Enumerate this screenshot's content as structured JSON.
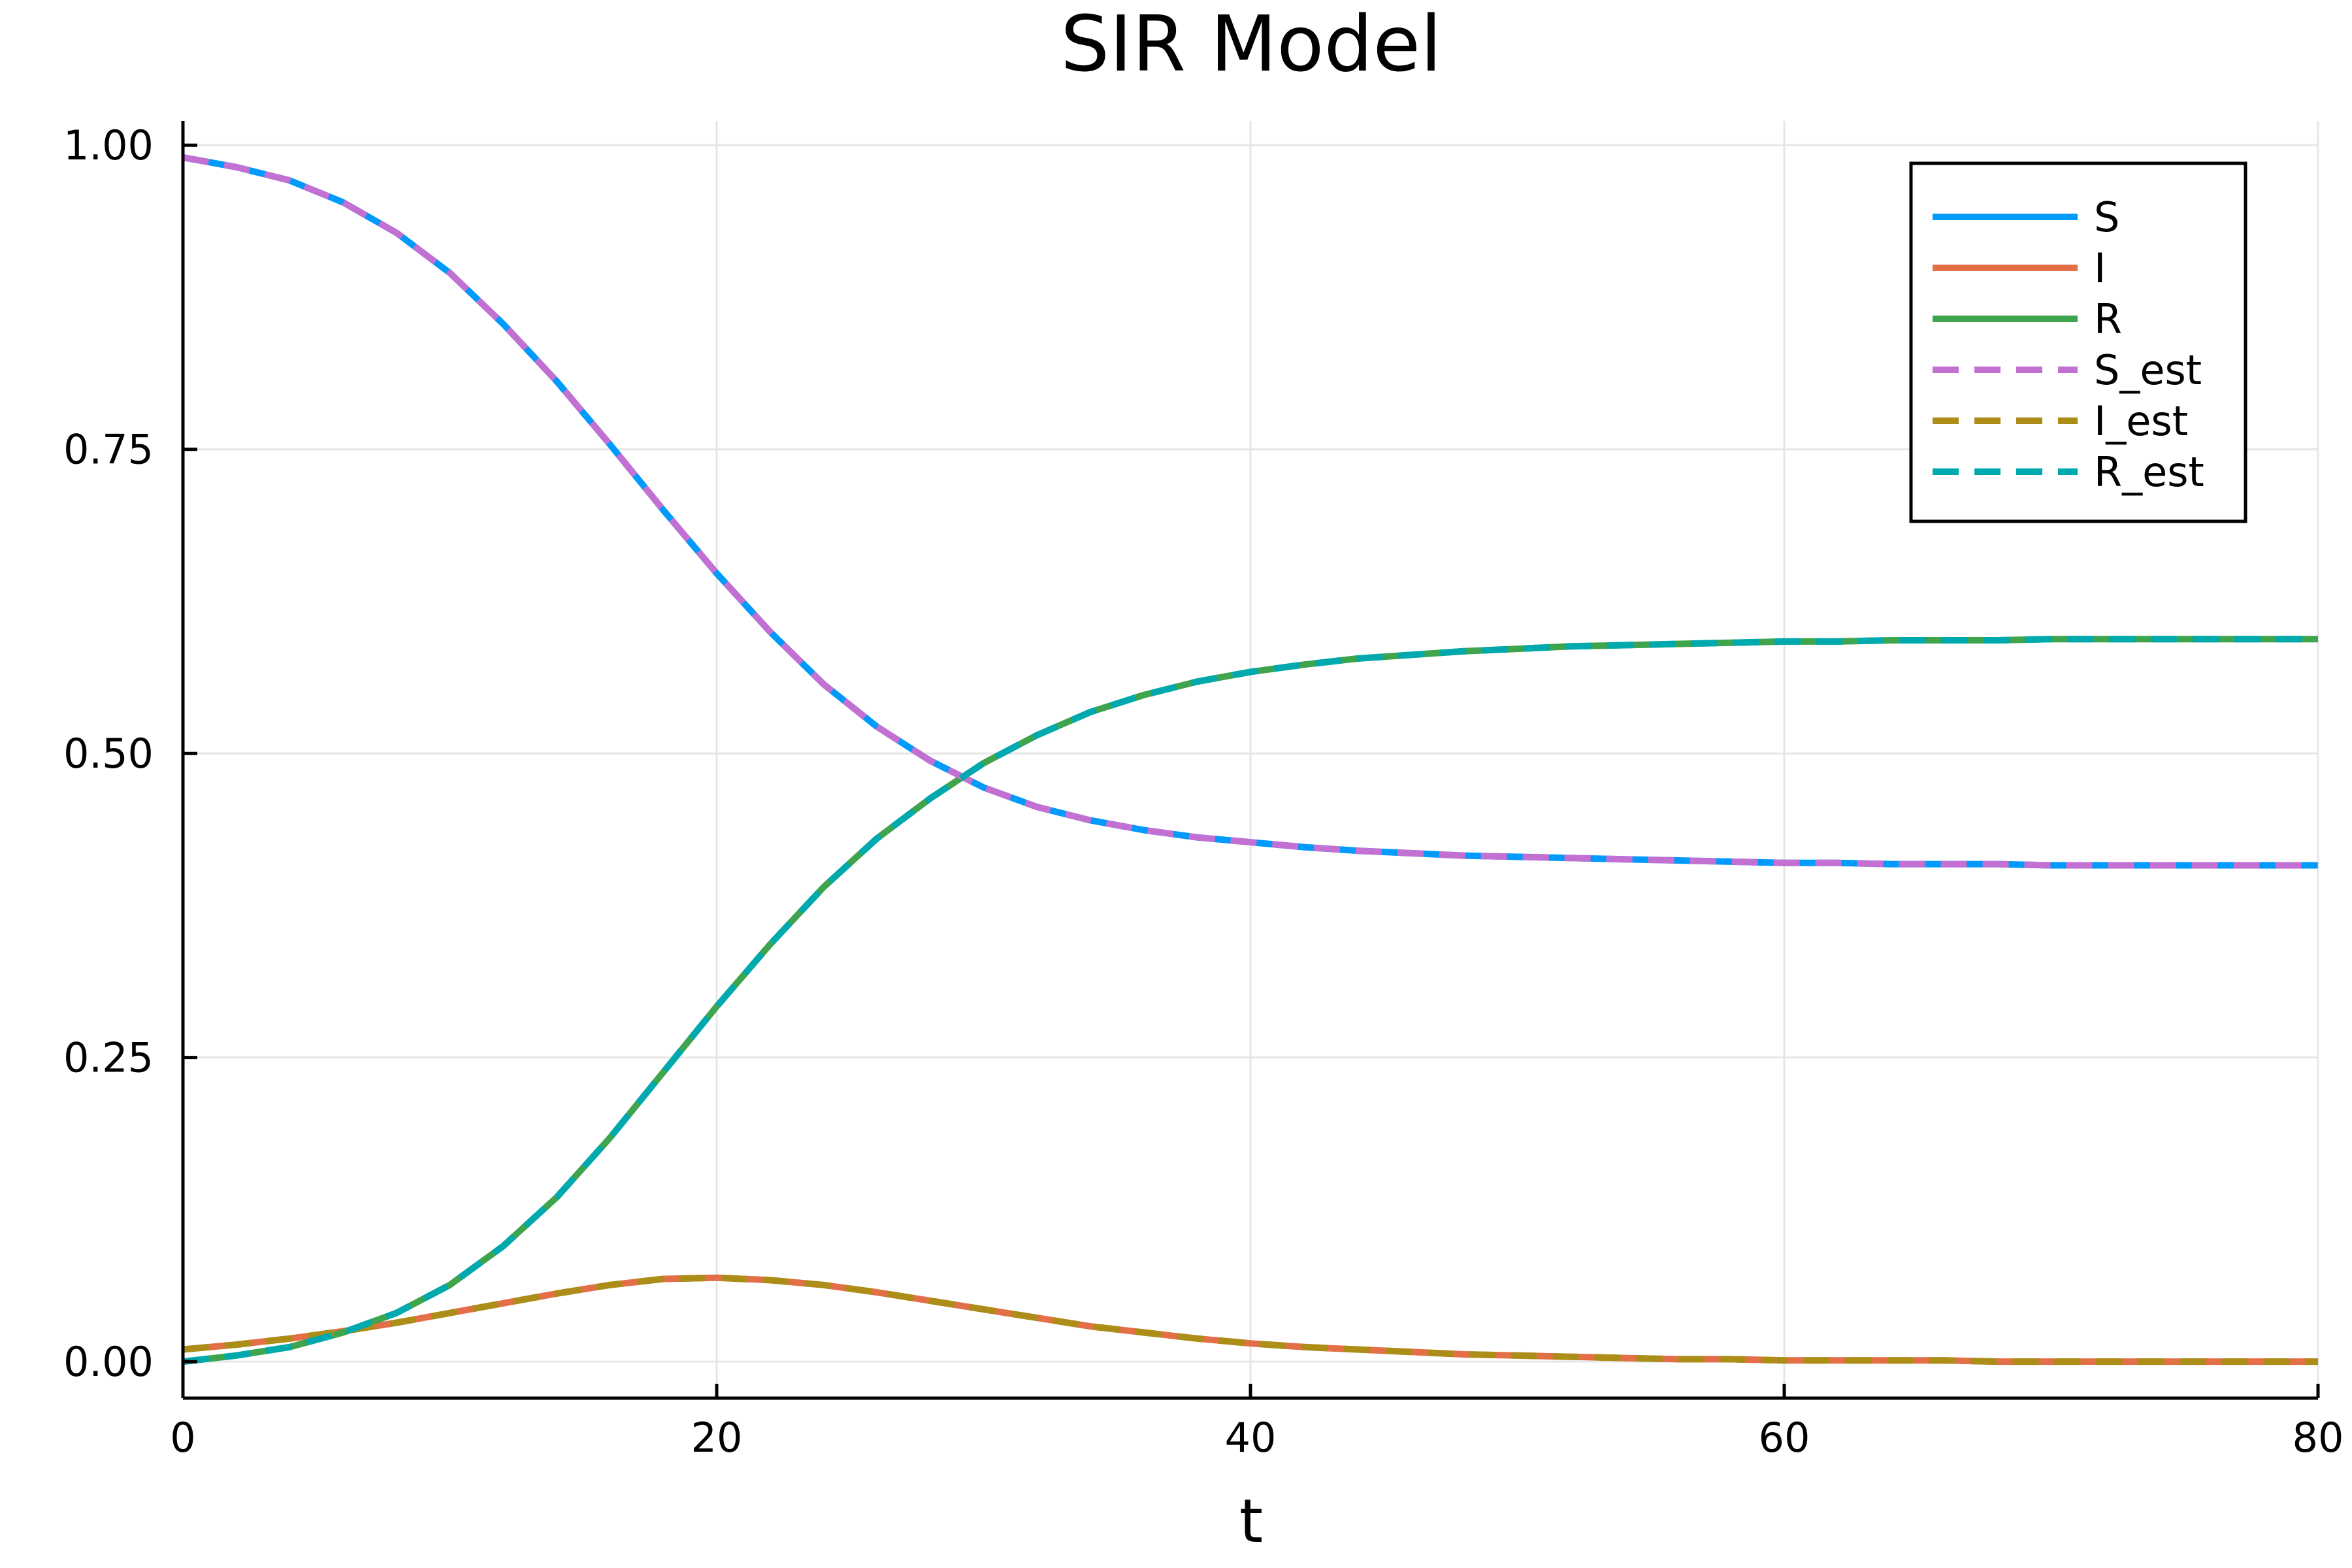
{
  "chart_data": {
    "type": "line",
    "title": "SIR Model",
    "xlabel": "t",
    "ylabel": "",
    "xlim": [
      0,
      80
    ],
    "ylim": [
      -0.03,
      1.02
    ],
    "xticks": [
      0,
      20,
      40,
      60,
      80
    ],
    "xtick_labels": [
      "0",
      "20",
      "40",
      "60",
      "80"
    ],
    "yticks": [
      0,
      0.25,
      0.5,
      0.75,
      1.0
    ],
    "ytick_labels": [
      "0.00",
      "0.25",
      "0.50",
      "0.75",
      "1.00"
    ],
    "grid": true,
    "legend_position": "top-right",
    "x": [
      0,
      2,
      4,
      6,
      8,
      10,
      12,
      14,
      16,
      18,
      20,
      22,
      24,
      26,
      28,
      30,
      32,
      34,
      36,
      38,
      40,
      42,
      44,
      46,
      48,
      50,
      52,
      54,
      56,
      58,
      60,
      62,
      64,
      66,
      68,
      70,
      72,
      74,
      76,
      78,
      80
    ],
    "series": [
      {
        "name": "S",
        "color": "#009AFA",
        "dash": "solid",
        "values": [
          0.99,
          0.982,
          0.971,
          0.953,
          0.928,
          0.895,
          0.853,
          0.806,
          0.754,
          0.7,
          0.648,
          0.6,
          0.557,
          0.522,
          0.494,
          0.472,
          0.456,
          0.445,
          0.437,
          0.431,
          0.427,
          0.423,
          0.42,
          0.418,
          0.416,
          0.415,
          0.414,
          0.413,
          0.412,
          0.411,
          0.41,
          0.41,
          0.409,
          0.409,
          0.409,
          0.408,
          0.408,
          0.408,
          0.408,
          0.408,
          0.408
        ]
      },
      {
        "name": "I",
        "color": "#E36F47",
        "dash": "solid",
        "values": [
          0.01,
          0.014,
          0.019,
          0.025,
          0.032,
          0.04,
          0.048,
          0.056,
          0.063,
          0.068,
          0.069,
          0.067,
          0.063,
          0.057,
          0.05,
          0.043,
          0.036,
          0.029,
          0.024,
          0.019,
          0.015,
          0.012,
          0.01,
          0.008,
          0.006,
          0.005,
          0.004,
          0.003,
          0.002,
          0.002,
          0.001,
          0.001,
          0.001,
          0.001,
          0.0,
          0.0,
          0.0,
          0.0,
          0.0,
          0.0,
          0.0
        ]
      },
      {
        "name": "R",
        "color": "#3EA44E",
        "dash": "solid",
        "values": [
          0.0,
          0.005,
          0.012,
          0.024,
          0.04,
          0.063,
          0.095,
          0.135,
          0.184,
          0.238,
          0.292,
          0.343,
          0.39,
          0.43,
          0.463,
          0.492,
          0.515,
          0.534,
          0.548,
          0.559,
          0.567,
          0.573,
          0.578,
          0.581,
          0.584,
          0.586,
          0.588,
          0.589,
          0.59,
          0.591,
          0.592,
          0.592,
          0.593,
          0.593,
          0.593,
          0.594,
          0.594,
          0.594,
          0.594,
          0.594,
          0.594
        ]
      },
      {
        "name": "S_est",
        "color": "#C271D2",
        "dash": "dashed",
        "values": [
          0.99,
          0.982,
          0.971,
          0.953,
          0.928,
          0.895,
          0.853,
          0.806,
          0.754,
          0.7,
          0.648,
          0.6,
          0.557,
          0.522,
          0.494,
          0.472,
          0.456,
          0.445,
          0.437,
          0.431,
          0.427,
          0.423,
          0.42,
          0.418,
          0.416,
          0.415,
          0.414,
          0.413,
          0.412,
          0.411,
          0.41,
          0.41,
          0.409,
          0.409,
          0.409,
          0.408,
          0.408,
          0.408,
          0.408,
          0.408,
          0.408
        ]
      },
      {
        "name": "I_est",
        "color": "#AC8D18",
        "dash": "dashed",
        "values": [
          0.01,
          0.014,
          0.019,
          0.025,
          0.032,
          0.04,
          0.048,
          0.056,
          0.063,
          0.068,
          0.069,
          0.067,
          0.063,
          0.057,
          0.05,
          0.043,
          0.036,
          0.029,
          0.024,
          0.019,
          0.015,
          0.012,
          0.01,
          0.008,
          0.006,
          0.005,
          0.004,
          0.003,
          0.002,
          0.002,
          0.001,
          0.001,
          0.001,
          0.001,
          0.0,
          0.0,
          0.0,
          0.0,
          0.0,
          0.0,
          0.0
        ]
      },
      {
        "name": "R_est",
        "color": "#00A9AD",
        "dash": "dashed",
        "values": [
          0.0,
          0.005,
          0.012,
          0.024,
          0.04,
          0.063,
          0.095,
          0.135,
          0.184,
          0.238,
          0.292,
          0.343,
          0.39,
          0.43,
          0.463,
          0.492,
          0.515,
          0.534,
          0.548,
          0.559,
          0.567,
          0.573,
          0.578,
          0.581,
          0.584,
          0.586,
          0.588,
          0.589,
          0.59,
          0.591,
          0.592,
          0.592,
          0.593,
          0.593,
          0.593,
          0.594,
          0.594,
          0.594,
          0.594,
          0.594,
          0.594
        ]
      }
    ]
  }
}
